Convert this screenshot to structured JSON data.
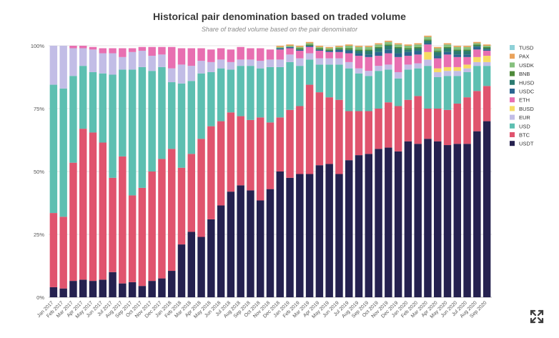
{
  "chart_data": {
    "type": "bar",
    "stacked": true,
    "title": "Historical pair denomination based on traded volume",
    "subtitle": "Share of traded volume based on the pair denominator",
    "xlabel": "",
    "ylabel": "",
    "ylim": [
      0,
      100
    ],
    "yticks": [
      "0%",
      "25%",
      "50%",
      "75%",
      "100%"
    ],
    "legend_position": "right",
    "categories": [
      "Jan 2017",
      "Feb 2017",
      "Mar 2017",
      "Apr 2017",
      "May 2017",
      "Jun 2017",
      "Jul 2017",
      "Aug 2017",
      "Sep 2017",
      "Oct 2017",
      "Nov 2017",
      "Dec 2017",
      "Jan 2018",
      "Feb 2018",
      "Mar 2018",
      "Apr 2018",
      "May 2018",
      "Jun 2018",
      "Jul 2018",
      "Aug 2018",
      "Sep 2018",
      "Oct 2018",
      "Nov 2018",
      "Dec 2018",
      "Jan 2019",
      "Feb 2019",
      "Mar 2019",
      "Apr 2019",
      "May 2019",
      "Jun 2019",
      "Jul 2019",
      "Aug 2019",
      "Sep 2019",
      "Oct 2019",
      "Nov 2019",
      "Dec 2019",
      "Jan 2020",
      "Feb 2020",
      "Mar 2020",
      "Apr 2020",
      "May 2020",
      "Jun 2020",
      "Jul 2020",
      "Aug 2020",
      "Sep 2020"
    ],
    "series": [
      {
        "name": "USDT",
        "color": "#25214f",
        "values": [
          4,
          3.5,
          6.5,
          7,
          6.5,
          7,
          10,
          5.5,
          6,
          4.5,
          6.5,
          7.5,
          10.5,
          21,
          26,
          24,
          31,
          36.5,
          42,
          44.5,
          42.5,
          38.5,
          43,
          50,
          47.5,
          49,
          49,
          52.5,
          53,
          49,
          54.5,
          56.5,
          57,
          59,
          59.5,
          58,
          62,
          61,
          63,
          62,
          60.5,
          61,
          61,
          66,
          70
        ]
      },
      {
        "name": "BTC",
        "color": "#e0546e",
        "values": [
          29.5,
          28.5,
          47,
          60,
          59,
          54.5,
          37.5,
          50.5,
          34.5,
          39,
          43.5,
          47.5,
          48.5,
          30.5,
          31,
          39,
          37,
          33.5,
          31.5,
          27.5,
          28,
          33,
          26.5,
          21.5,
          27,
          27,
          35.5,
          29,
          26.5,
          29.5,
          19.5,
          17.5,
          17,
          16,
          18,
          18,
          16.5,
          19,
          12,
          13,
          14,
          16,
          18.5,
          16,
          14
        ]
      },
      {
        "name": "USD",
        "color": "#5dbfb1",
        "values": [
          51,
          51,
          34.5,
          25,
          24,
          27.5,
          41,
          34.5,
          50,
          48,
          40,
          36.5,
          26.5,
          33.5,
          29,
          26,
          21.5,
          21,
          17,
          20,
          21.5,
          19.5,
          22,
          20,
          19,
          16,
          10,
          11,
          13,
          14,
          17,
          15,
          14,
          15,
          13,
          11,
          12,
          11,
          17,
          12.5,
          13.5,
          11,
          10,
          10,
          8
        ]
      },
      {
        "name": "EUR",
        "color": "#c2bde6",
        "values": [
          15.5,
          17,
          11,
          7,
          9,
          8,
          8.5,
          5,
          7,
          6.5,
          6,
          5,
          5.5,
          7.5,
          6,
          5,
          4,
          3.5,
          3,
          2.5,
          2.5,
          3,
          3,
          3,
          3,
          3,
          2.5,
          2.5,
          2.5,
          2.5,
          2.5,
          2,
          2,
          2,
          2,
          2.5,
          2,
          2,
          2.5,
          2,
          2,
          2,
          1.5,
          1.5,
          1.5
        ]
      },
      {
        "name": "BUSD",
        "color": "#f6dc63",
        "values": [
          0,
          0,
          0,
          0,
          0,
          0,
          0,
          0,
          0,
          0,
          0,
          0,
          0,
          0,
          0,
          0,
          0,
          0,
          0,
          0,
          0,
          0,
          0,
          0,
          0,
          0,
          0,
          0,
          0,
          0,
          0,
          0,
          0,
          0,
          0,
          0,
          0,
          0,
          3,
          1.5,
          1.5,
          1.5,
          1.5,
          2,
          2.5
        ]
      },
      {
        "name": "ETH",
        "color": "#e86fb1",
        "values": [
          0,
          0,
          1,
          1,
          1,
          2,
          2,
          3.5,
          1.5,
          1.5,
          3.5,
          3,
          8.5,
          6.5,
          7,
          5,
          5,
          4.5,
          5,
          5,
          4.5,
          5,
          4,
          4,
          2.5,
          3,
          2.5,
          3,
          2.5,
          2.5,
          3.5,
          5,
          5.5,
          4,
          4.5,
          6,
          3.5,
          3.5,
          3,
          4,
          5,
          4,
          3,
          3,
          2
        ]
      },
      {
        "name": "USDC",
        "color": "#2c6591",
        "values": [
          0,
          0,
          0,
          0,
          0,
          0,
          0,
          0,
          0,
          0,
          0,
          0,
          0,
          0,
          0,
          0,
          0,
          0,
          0,
          0,
          0,
          0,
          0,
          0.5,
          0.5,
          0.5,
          0.5,
          0.5,
          0.5,
          1,
          1,
          1,
          1,
          1.5,
          1.5,
          1.5,
          1.5,
          1.5,
          0.5,
          1,
          1,
          1,
          1,
          1,
          0.5
        ]
      },
      {
        "name": "HUSD",
        "color": "#2c7b71",
        "values": [
          0,
          0,
          0,
          0,
          0,
          0,
          0,
          0,
          0,
          0,
          0,
          0,
          0,
          0,
          0,
          0,
          0,
          0,
          0,
          0,
          0,
          0,
          0,
          0,
          0,
          0,
          0,
          0,
          0,
          0,
          0.5,
          1,
          1.5,
          1.5,
          1.5,
          2,
          1,
          1,
          1,
          1.5,
          1.5,
          1.5,
          1.5,
          0.5,
          0.5
        ]
      },
      {
        "name": "BNB",
        "color": "#4e8a3a",
        "values": [
          0,
          0,
          0,
          0,
          0,
          0,
          0,
          0,
          0,
          0,
          0,
          0,
          0,
          0,
          0,
          0,
          0,
          0,
          0,
          0,
          0,
          0,
          0,
          0,
          0,
          0.5,
          0.5,
          0.5,
          0.5,
          0.5,
          0.5,
          0.5,
          0.5,
          0.5,
          0.5,
          0.5,
          0.5,
          0.5,
          0.5,
          0.5,
          0.5,
          0.5,
          0.5,
          0.5,
          0.5
        ]
      },
      {
        "name": "USDK",
        "color": "#86c07e",
        "values": [
          0,
          0,
          0,
          0,
          0,
          0,
          0,
          0,
          0,
          0,
          0,
          0,
          0,
          0,
          0,
          0,
          0,
          0,
          0,
          0,
          0,
          0,
          0,
          0.5,
          0.5,
          0.5,
          0.5,
          0.5,
          0.5,
          0.5,
          1,
          1,
          1,
          1,
          1,
          1,
          1,
          1,
          1,
          1,
          1,
          1,
          1,
          0.5,
          0.5
        ]
      },
      {
        "name": "PAX",
        "color": "#eaa35b",
        "values": [
          0,
          0,
          0,
          0,
          0,
          0,
          0,
          0,
          0,
          0,
          0,
          0,
          0,
          0,
          0,
          0,
          0,
          0,
          0,
          0,
          0,
          0,
          0,
          0.5,
          0.5,
          0.5,
          0.5,
          0.5,
          0.5,
          0.5,
          0.5,
          0.5,
          0.5,
          0.5,
          0.5,
          0.5,
          0.5,
          0.5,
          0.5,
          0.5,
          0.5,
          0.5,
          0.5,
          0.5,
          0.5
        ]
      },
      {
        "name": "TUSD",
        "color": "#8fd1d8",
        "values": [
          0,
          0,
          0,
          0,
          0,
          0,
          0,
          0,
          0,
          0,
          0,
          0,
          0,
          0,
          0,
          0,
          0,
          0,
          0,
          0,
          0,
          0,
          0,
          0,
          0,
          0,
          0,
          0,
          0,
          0,
          0,
          0,
          0,
          0,
          0,
          0,
          0,
          0,
          0,
          0,
          0,
          0,
          0,
          0,
          0
        ]
      }
    ]
  },
  "icons": {
    "expand": "expand-arrows-icon"
  }
}
